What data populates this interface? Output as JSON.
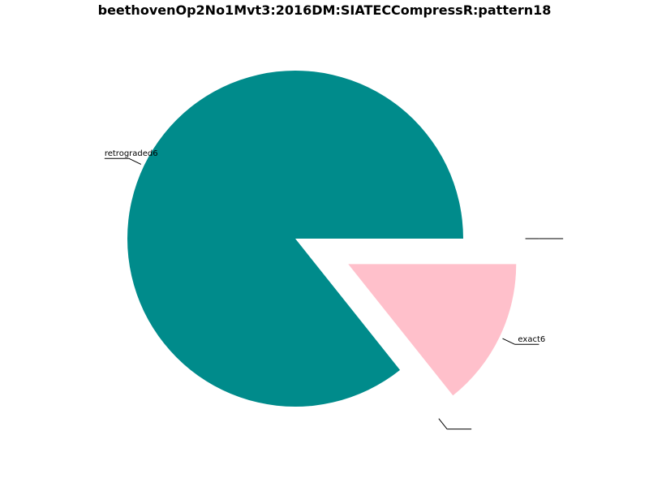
{
  "chart_data": {
    "type": "pie",
    "title": "beethovenOp2No1Mvt3:2016DM:SIATECCompressR:pattern18",
    "slices": [
      {
        "label": "retrograded6",
        "value": 6,
        "color": "#008b8b",
        "exploded": false
      },
      {
        "label": "",
        "value": 0,
        "color": "#ffffff",
        "exploded": true
      },
      {
        "label": "exact6",
        "value": 1,
        "color": "#ffc0cb",
        "exploded": true
      },
      {
        "label": "",
        "value": 0,
        "color": "#ffffff",
        "exploded": true
      }
    ],
    "start_angle": "0 degrees (3 o'clock), counter-clockwise",
    "legend": "none"
  }
}
